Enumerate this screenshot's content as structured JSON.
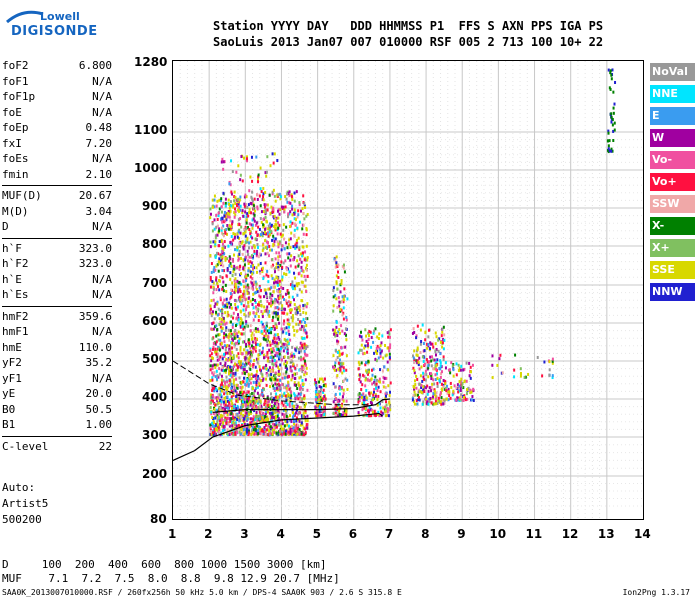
{
  "logo": {
    "line1": "Lowell",
    "line2": "DIGISONDE"
  },
  "header": {
    "line1": "Station YYYY DAY   DDD HHMMSS P1  FFS S AXN PPS IGA PS",
    "line2": "SaoLuis 2013 Jan07 007 010000 RSF 005 2 713 100 10+ 22"
  },
  "params": [
    {
      "name": "foF2",
      "value": "6.800"
    },
    {
      "name": "foF1",
      "value": "N/A"
    },
    {
      "name": "foF1p",
      "value": "N/A"
    },
    {
      "name": "foE",
      "value": "N/A"
    },
    {
      "name": "foEp",
      "value": "0.48"
    },
    {
      "name": "fxI",
      "value": "7.20"
    },
    {
      "name": "foEs",
      "value": "N/A"
    },
    {
      "name": "fmin",
      "value": "2.10"
    }
  ],
  "params2": [
    {
      "name": "MUF(D)",
      "value": "20.67"
    },
    {
      "name": "M(D)",
      "value": "3.04"
    },
    {
      "name": "D",
      "value": "N/A"
    }
  ],
  "params3": [
    {
      "name": "h`F",
      "value": "323.0"
    },
    {
      "name": "h`F2",
      "value": "323.0"
    },
    {
      "name": "h`E",
      "value": "N/A"
    },
    {
      "name": "h`Es",
      "value": "N/A"
    }
  ],
  "params4": [
    {
      "name": "hmF2",
      "value": "359.6"
    },
    {
      "name": "hmF1",
      "value": "N/A"
    },
    {
      "name": "hmE",
      "value": "110.0"
    },
    {
      "name": "yF2",
      "value": "35.2"
    },
    {
      "name": "yF1",
      "value": "N/A"
    },
    {
      "name": "yE",
      "value": "20.0"
    },
    {
      "name": "B0",
      "value": "50.5"
    },
    {
      "name": "B1",
      "value": "1.00"
    }
  ],
  "params5": [
    {
      "name": "C-level",
      "value": "22"
    }
  ],
  "auto": [
    "Auto:",
    "Artist5",
    "500200"
  ],
  "legend": [
    {
      "label": "NoVal",
      "color": "#999999"
    },
    {
      "label": "NNE",
      "color": "#00e5ff"
    },
    {
      "label": "E",
      "color": "#3a9cf0"
    },
    {
      "label": "W",
      "color": "#a000a0"
    },
    {
      "label": "Vo-",
      "color": "#f050a0"
    },
    {
      "label": "Vo+",
      "color": "#ff1040"
    },
    {
      "label": "SSW",
      "color": "#f0a8a8"
    },
    {
      "label": "X-",
      "color": "#008000"
    },
    {
      "label": "X+",
      "color": "#80c060"
    },
    {
      "label": "SSE",
      "color": "#d8d800"
    },
    {
      "label": "NNW",
      "color": "#2020d0"
    }
  ],
  "muf_table": {
    "line1": "D     100  200  400  600  800 1000 1500 3000 [km]",
    "line2": "MUF    7.1  7.2  7.5  8.0  8.8  9.8 12.9 20.7 [MHz]"
  },
  "footer": {
    "left": "SAA0K_2013007010000.RSF / 260fx256h 50 kHz 5.0 km / DPS-4 SAA0K 903 / 2.6 S 315.8 E",
    "right": "Ion2Png 1.3.17"
  },
  "chart_data": {
    "type": "scatter",
    "x_ticks": [
      "1",
      "2",
      "3",
      "4",
      "5",
      "6",
      "7",
      "8",
      "9",
      "10",
      "11",
      "12",
      "13",
      "14"
    ],
    "y_ticks": [
      "80",
      "200",
      "300",
      "400",
      "500",
      "600",
      "700",
      "800",
      "900",
      "1000",
      "1100",
      "1280"
    ],
    "xlim": [
      1,
      14
    ],
    "ylim": [
      80,
      1280
    ],
    "grid": true,
    "legend_placement": "right"
  }
}
